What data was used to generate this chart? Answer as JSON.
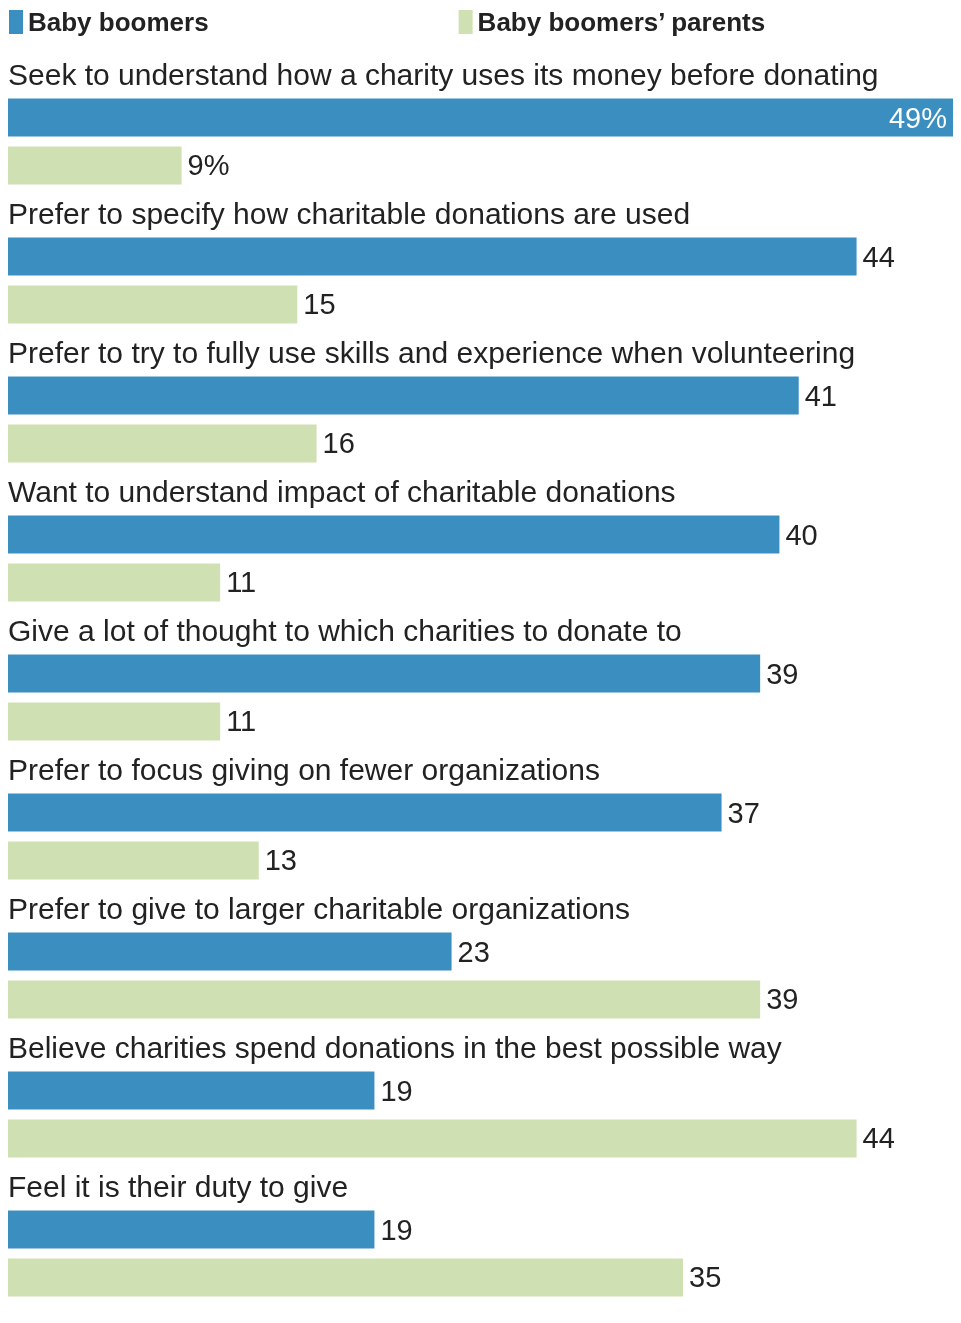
{
  "chart_data": {
    "type": "bar",
    "orientation": "horizontal",
    "legend": "top left",
    "categories": [
      "Seek to understand how a charity uses its money before donating",
      "Prefer to specify how charitable donations are used",
      "Prefer to try to fully use skills and experience when volunteering",
      "Want to understand impact of charitable donations",
      "Give a lot of thought to which charities to donate to",
      "Prefer to focus giving on fewer organizations",
      "Prefer to give to larger charitable organizations",
      "Believe charities spend donations in the best possible way",
      "Feel it is their duty to give"
    ],
    "series": [
      {
        "name": "Baby boomers",
        "color": "#3a8fc0",
        "values": [
          49,
          44,
          41,
          40,
          39,
          37,
          23,
          19,
          19
        ],
        "value_labels": [
          "49%",
          "44",
          "41",
          "40",
          "39",
          "37",
          "23",
          "19",
          "19"
        ]
      },
      {
        "name": "Baby boomers’ parents",
        "color": "#cfe0b2",
        "values": [
          9,
          15,
          16,
          11,
          11,
          13,
          39,
          44,
          35
        ],
        "value_labels": [
          "9%",
          "15",
          "16",
          "11",
          "11",
          "13",
          "39",
          "44",
          "35"
        ]
      }
    ]
  }
}
